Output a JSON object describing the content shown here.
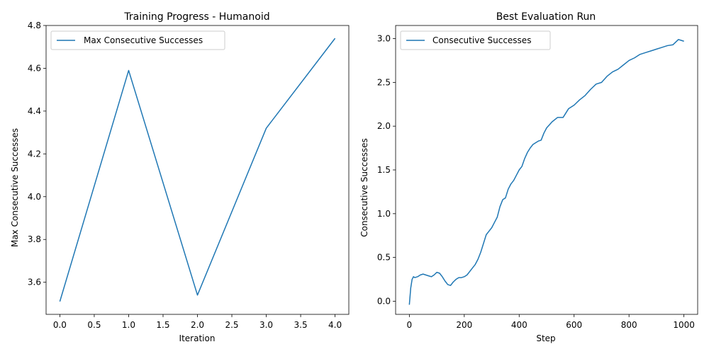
{
  "chart_data": [
    {
      "type": "line",
      "title": "Training Progress - Humanoid",
      "xlabel": "Iteration",
      "ylabel": "Max Consecutive Successes",
      "xlim": [
        -0.2,
        4.2
      ],
      "ylim": [
        3.45,
        4.8
      ],
      "xticks": [
        0.0,
        0.5,
        1.0,
        1.5,
        2.0,
        2.5,
        3.0,
        3.5,
        4.0
      ],
      "xtick_labels": [
        "0.0",
        "0.5",
        "1.0",
        "1.5",
        "2.0",
        "2.5",
        "3.0",
        "3.5",
        "4.0"
      ],
      "yticks": [
        3.6,
        3.8,
        4.0,
        4.2,
        4.4,
        4.6,
        4.8
      ],
      "ytick_labels": [
        "3.6",
        "3.8",
        "4.0",
        "4.2",
        "4.4",
        "4.6",
        "4.8"
      ],
      "legend_position": "upper-left",
      "series": [
        {
          "name": "Max Consecutive Successes",
          "color": "#1f77b4",
          "x": [
            0,
            1,
            2,
            3,
            4
          ],
          "y": [
            3.51,
            4.59,
            3.54,
            4.32,
            4.74
          ]
        }
      ]
    },
    {
      "type": "line",
      "title": "Best Evaluation Run",
      "xlabel": "Step",
      "ylabel": "Consecutive Successes",
      "xlim": [
        -50,
        1050
      ],
      "ylim": [
        -0.15,
        3.15
      ],
      "xticks": [
        0,
        200,
        400,
        600,
        800,
        1000
      ],
      "xtick_labels": [
        "0",
        "200",
        "400",
        "600",
        "800",
        "1000"
      ],
      "yticks": [
        0.0,
        0.5,
        1.0,
        1.5,
        2.0,
        2.5,
        3.0
      ],
      "ytick_labels": [
        "0.0",
        "0.5",
        "1.0",
        "1.5",
        "2.0",
        "2.5",
        "3.0"
      ],
      "legend_position": "upper-left",
      "series": [
        {
          "name": "Consecutive Successes",
          "color": "#1f77b4",
          "x": [
            0,
            5,
            10,
            15,
            20,
            30,
            40,
            50,
            60,
            70,
            80,
            90,
            100,
            110,
            120,
            130,
            140,
            150,
            160,
            170,
            180,
            190,
            200,
            210,
            220,
            230,
            240,
            250,
            260,
            270,
            280,
            290,
            300,
            310,
            320,
            330,
            340,
            350,
            360,
            370,
            380,
            390,
            400,
            410,
            420,
            430,
            440,
            450,
            460,
            470,
            480,
            490,
            500,
            520,
            540,
            560,
            580,
            600,
            620,
            640,
            660,
            680,
            700,
            720,
            740,
            760,
            780,
            800,
            820,
            840,
            860,
            880,
            900,
            920,
            940,
            960,
            980,
            990,
            1000
          ],
          "y": [
            -0.04,
            0.15,
            0.25,
            0.28,
            0.27,
            0.28,
            0.3,
            0.31,
            0.3,
            0.29,
            0.28,
            0.3,
            0.33,
            0.32,
            0.28,
            0.23,
            0.19,
            0.18,
            0.22,
            0.25,
            0.27,
            0.27,
            0.28,
            0.3,
            0.34,
            0.38,
            0.42,
            0.48,
            0.56,
            0.66,
            0.76,
            0.8,
            0.84,
            0.9,
            0.96,
            1.08,
            1.16,
            1.18,
            1.28,
            1.34,
            1.38,
            1.44,
            1.5,
            1.54,
            1.63,
            1.7,
            1.75,
            1.79,
            1.81,
            1.83,
            1.84,
            1.92,
            1.98,
            2.05,
            2.1,
            2.1,
            2.2,
            2.24,
            2.3,
            2.35,
            2.42,
            2.48,
            2.5,
            2.57,
            2.62,
            2.65,
            2.7,
            2.75,
            2.78,
            2.82,
            2.84,
            2.86,
            2.88,
            2.9,
            2.92,
            2.93,
            2.99,
            2.98,
            2.97
          ]
        }
      ]
    }
  ]
}
